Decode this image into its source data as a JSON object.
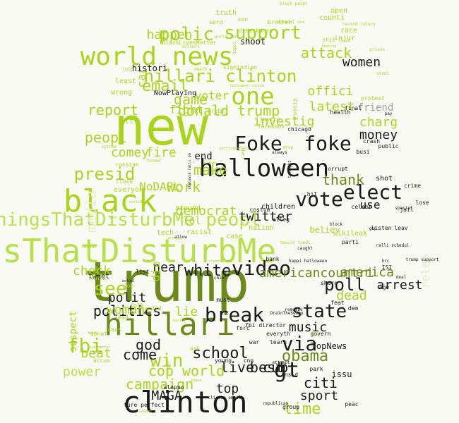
{
  "palette": {
    "background": "#fafaf5",
    "light": "#b8e04a",
    "lime": "#a8d41e",
    "green": "#8bb51e",
    "olive": "#6b8a1a",
    "dark": "#1a1a1a",
    "grey": "#a0a0a0",
    "faint": "#e6ecc6"
  },
  "words": [
    {
      "text": "trump",
      "weight": 100,
      "tone": "olive"
    },
    {
      "text": "new",
      "weight": 96,
      "tone": "lime"
    },
    {
      "text": "ThingsThatDisturbMe",
      "weight": 78,
      "tone": "light"
    },
    {
      "text": "black",
      "weight": 70,
      "tone": "lime"
    },
    {
      "text": "clinton",
      "weight": 68,
      "tone": "dark"
    },
    {
      "text": "hillari",
      "weight": 66,
      "tone": "olive"
    },
    {
      "text": "world news",
      "weight": 58,
      "tone": "lime"
    },
    {
      "text": "halloween",
      "weight": 56,
      "tone": "dark"
    },
    {
      "text": "one",
      "weight": 54,
      "tone": "lime"
    },
    {
      "text": "ThingsThatDisturbMe peopl",
      "weight": 50,
      "tone": "light"
    },
    {
      "text": "Foke",
      "weight": 48,
      "tone": "dark"
    },
    {
      "text": "foke",
      "weight": 48,
      "tone": "dark"
    },
    {
      "text": "video",
      "weight": 46,
      "tone": "dark"
    },
    {
      "text": "vote",
      "weight": 44,
      "tone": "dark"
    },
    {
      "text": "elect",
      "weight": 44,
      "tone": "dark"
    },
    {
      "text": "break",
      "weight": 42,
      "tone": "dark"
    },
    {
      "text": "hillari clinton",
      "weight": 40,
      "tone": "lime"
    },
    {
      "text": "fbi",
      "weight": 40,
      "tone": "lime"
    },
    {
      "text": "state",
      "weight": 40,
      "tone": "dark"
    },
    {
      "text": "polic",
      "weight": 38,
      "tone": "lime"
    },
    {
      "text": "support",
      "weight": 38,
      "tone": "lime"
    },
    {
      "text": "email",
      "weight": 36,
      "tone": "lime"
    },
    {
      "text": "via",
      "weight": 36,
      "tone": "dark"
    },
    {
      "text": "gt",
      "weight": 36,
      "tone": "dark"
    },
    {
      "text": "presid",
      "weight": 35,
      "tone": "lime"
    },
    {
      "text": "see",
      "weight": 35,
      "tone": "lime"
    },
    {
      "text": "win",
      "weight": 35,
      "tone": "lime"
    },
    {
      "text": "poll",
      "weight": 34,
      "tone": "dark"
    },
    {
      "text": "time",
      "weight": 34,
      "tone": "lime"
    },
    {
      "text": "obama",
      "weight": 33,
      "tone": "olive"
    },
    {
      "text": "school",
      "weight": 32,
      "tone": "dark"
    },
    {
      "text": "white",
      "weight": 32,
      "tone": "dark"
    },
    {
      "text": "attack",
      "weight": 32,
      "tone": "lime"
    },
    {
      "text": "game",
      "weight": 31,
      "tone": "lime"
    },
    {
      "text": "report",
      "weight": 31,
      "tone": "lime"
    },
    {
      "text": "peopl",
      "weight": 31,
      "tone": "lime"
    },
    {
      "text": "make",
      "weight": 31,
      "tone": "lime"
    },
    {
      "text": "work",
      "weight": 31,
      "tone": "lime"
    },
    {
      "text": "donald trump",
      "weight": 30,
      "tone": "lime"
    },
    {
      "text": "offici",
      "weight": 30,
      "tone": "lime"
    },
    {
      "text": "investig",
      "weight": 30,
      "tone": "lime"
    },
    {
      "text": "america",
      "weight": 29,
      "tone": "olive"
    },
    {
      "text": "politics",
      "weight": 29,
      "tone": "dark"
    },
    {
      "text": "god",
      "weight": 29,
      "tone": "dark"
    },
    {
      "text": "check",
      "weight": 29,
      "tone": "lime"
    },
    {
      "text": "dead",
      "weight": 29,
      "tone": "lime"
    },
    {
      "text": "cop world",
      "weight": 29,
      "tone": "lime"
    },
    {
      "text": "live cub",
      "weight": 29,
      "tone": "dark"
    },
    {
      "text": "women",
      "weight": 29,
      "tone": "dark"
    },
    {
      "text": "latest",
      "weight": 28,
      "tone": "lime"
    },
    {
      "text": "thank",
      "weight": 28,
      "tone": "olive"
    },
    {
      "text": "come",
      "weight": 28,
      "tone": "dark"
    },
    {
      "text": "media",
      "weight": 28,
      "tone": "faint"
    },
    {
      "text": "campaign",
      "weight": 28,
      "tone": "lime"
    },
    {
      "text": "citi",
      "weight": 28,
      "tone": "dark"
    },
    {
      "text": "best",
      "weight": 28,
      "tone": "dark"
    },
    {
      "text": "top",
      "weight": 28,
      "tone": "dark"
    },
    {
      "text": "americancountri",
      "weight": 27,
      "tone": "olive"
    },
    {
      "text": "music",
      "weight": 27,
      "tone": "dark"
    },
    {
      "text": "arrest",
      "weight": 27,
      "tone": "dark"
    },
    {
      "text": "MAGA",
      "weight": 27,
      "tone": "dark"
    },
    {
      "text": "sport",
      "weight": 27,
      "tone": "dark"
    },
    {
      "text": "twitter",
      "weight": 26,
      "tone": "dark"
    },
    {
      "text": "use",
      "weight": 26,
      "tone": "dark"
    },
    {
      "text": "polit",
      "weight": 25,
      "tone": "dark"
    },
    {
      "text": "woman",
      "weight": 26,
      "tone": "lime"
    },
    {
      "text": "charg",
      "weight": 26,
      "tone": "lime"
    },
    {
      "text": "money",
      "weight": 26,
      "tone": "dark"
    },
    {
      "text": "near",
      "weight": 26,
      "tone": "dark"
    },
    {
      "text": "lie",
      "weight": 26,
      "tone": "lime"
    },
    {
      "text": "democrat",
      "weight": 26,
      "tone": "lime"
    },
    {
      "text": "comey",
      "weight": 25,
      "tone": "lime"
    },
    {
      "text": "fire",
      "weight": 25,
      "tone": "lime"
    },
    {
      "text": "happen",
      "weight": 25,
      "tone": "lime"
    },
    {
      "text": "car",
      "weight": 25,
      "tone": "lime"
    },
    {
      "text": "NoDAPL",
      "weight": 24,
      "tone": "lime"
    },
    {
      "text": "fight",
      "weight": 24,
      "tone": "lime"
    },
    {
      "text": "voter",
      "weight": 24,
      "tone": "lime"
    },
    {
      "text": "die",
      "weight": 24,
      "tone": "lime"
    },
    {
      "text": "beat",
      "weight": 24,
      "tone": "lime"
    },
    {
      "text": "power",
      "weight": 24,
      "tone": "light"
    },
    {
      "text": "relea",
      "weight": 24,
      "tone": "faint"
    },
    {
      "text": "friend",
      "weight": 23,
      "tone": "grey"
    },
    {
      "text": "end",
      "weight": 22,
      "tone": "dark"
    },
    {
      "text": "lol",
      "weight": 22,
      "tone": "lime"
    },
    {
      "text": "suspect",
      "weight": 22,
      "tone": "lime"
    },
    {
      "text": "believ",
      "weight": 20,
      "tone": "lime"
    },
    {
      "text": "shoot",
      "weight": 20,
      "tone": "dark"
    },
    {
      "text": "TopNews",
      "weight": 20,
      "tone": "dark"
    },
    {
      "text": "shot",
      "weight": 20,
      "tone": "dark"
    },
    {
      "text": "children",
      "weight": 16,
      "tone": "dark"
    },
    {
      "text": "histori",
      "weight": 16,
      "tone": "dark"
    },
    {
      "text": "everyon",
      "weight": 16,
      "tone": "lime"
    },
    {
      "text": "wikileak",
      "weight": 16,
      "tone": "lime"
    },
    {
      "text": "tweet",
      "weight": 16,
      "tone": "dark"
    },
    {
      "text": "around",
      "weight": 16,
      "tone": "lime"
    },
    {
      "text": "racist",
      "weight": 16,
      "tone": "lime"
    },
    {
      "text": "tech",
      "weight": 16,
      "tone": "lime"
    },
    {
      "text": "case",
      "weight": 16,
      "tone": "lime"
    },
    {
      "text": "nation",
      "weight": 16,
      "tone": "lime"
    },
    {
      "text": "NowPlaying",
      "weight": 16,
      "tone": "dark"
    },
    {
      "text": "wrong",
      "weight": 16,
      "tone": "lime"
    },
    {
      "text": "least",
      "weight": 16,
      "tone": "lime"
    },
    {
      "text": "htt",
      "weight": 16,
      "tone": "lime"
    },
    {
      "text": "truth",
      "weight": 14,
      "tone": "lime"
    },
    {
      "text": "counti",
      "weight": 14,
      "tone": "lime"
    },
    {
      "text": "race",
      "weight": 14,
      "tone": "lime"
    },
    {
      "text": "injur",
      "weight": 14,
      "tone": "lime"
    },
    {
      "text": "open",
      "weight": 14,
      "tone": "lime"
    },
    {
      "text": "word",
      "weight": 12,
      "tone": "lime"
    },
    {
      "text": "son",
      "weight": 12,
      "tone": "lime"
    },
    {
      "text": "brother",
      "weight": 12,
      "tone": "lime"
    },
    {
      "text": "dresskansa",
      "weight": 12,
      "tone": "lime"
    },
    {
      "text": "shit",
      "weight": 12,
      "tone": "lime"
    },
    {
      "text": "BlackLivesMatter",
      "weight": 12,
      "tone": "lime"
    },
    {
      "text": "signindian",
      "weight": 12,
      "tone": "lime"
    },
    {
      "text": "russia",
      "weight": 12,
      "tone": "lime"
    },
    {
      "text": "facebook",
      "weight": 12,
      "tone": "lime"
    },
    {
      "text": "justic",
      "weight": 12,
      "tone": "lime"
    },
    {
      "text": "probe",
      "weight": 12,
      "tone": "lime"
    },
    {
      "text": "close",
      "weight": 12,
      "tone": "lime"
    },
    {
      "text": "protest",
      "weight": 12,
      "tone": "lime"
    },
    {
      "text": "final",
      "weight": 12,
      "tone": "dark"
    },
    {
      "text": "crash",
      "weight": 12,
      "tone": "dark"
    },
    {
      "text": "public",
      "weight": 12,
      "tone": "dark"
    },
    {
      "text": "busi",
      "weight": 12,
      "tone": "dark"
    },
    {
      "text": "corrupt",
      "weight": 12,
      "tone": "dark"
    },
    {
      "text": "crime",
      "weight": 12,
      "tone": "dark"
    },
    {
      "text": "lose",
      "weight": 12,
      "tone": "dark"
    },
    {
      "text": "jail",
      "weight": 12,
      "tone": "dark"
    },
    {
      "text": "celebr",
      "weight": 12,
      "tone": "dark"
    },
    {
      "text": "hit",
      "weight": 12,
      "tone": "dark"
    },
    {
      "text": "parti",
      "weight": 12,
      "tone": "dark"
    },
    {
      "text": "listen",
      "weight": 12,
      "tone": "dark"
    },
    {
      "text": "leav",
      "weight": 12,
      "tone": "dark"
    },
    {
      "text": "chicago",
      "weight": 12,
      "tone": "dark"
    },
    {
      "text": "share",
      "weight": 12,
      "tone": "dark"
    },
    {
      "text": "health",
      "weight": 12,
      "tone": "dark"
    },
    {
      "text": "ISI",
      "weight": 12,
      "tone": "dark"
    },
    {
      "text": "ago",
      "weight": 12,
      "tone": "dark"
    },
    {
      "text": "dem",
      "weight": 12,
      "tone": "dark"
    },
    {
      "text": "feat",
      "weight": 12,
      "tone": "dark"
    },
    {
      "text": "govern",
      "weight": 12,
      "tone": "dark"
    },
    {
      "text": "must",
      "weight": 12,
      "tone": "dark"
    },
    {
      "text": "bank",
      "weight": 12,
      "tone": "dark"
    },
    {
      "text": "chief",
      "weight": 12,
      "tone": "dark"
    },
    {
      "text": "fbi director",
      "weight": 10,
      "tone": "dark"
    },
    {
      "text": "war",
      "weight": 12,
      "tone": "dark"
    },
    {
      "text": "forc",
      "weight": 12,
      "tone": "dark"
    },
    {
      "text": "insid",
      "weight": 12,
      "tone": "dark"
    },
    {
      "text": "everyth",
      "weight": 12,
      "tone": "dark"
    },
    {
      "text": "learn",
      "weight": 12,
      "tone": "dark"
    },
    {
      "text": "park",
      "weight": 12,
      "tone": "dark"
    },
    {
      "text": "young",
      "weight": 12,
      "tone": "dark"
    },
    {
      "text": "cnn",
      "weight": 12,
      "tone": "dark"
    },
    {
      "text": "issu",
      "weight": 12,
      "tone": "dark"
    },
    {
      "text": "aleppo",
      "weight": 14,
      "tone": "dark"
    },
    {
      "text": "clinton email",
      "weight": 12,
      "tone": "dark"
    },
    {
      "text": "republican",
      "weight": 10,
      "tone": "dark"
    },
    {
      "text": "ture perfect",
      "weight": 10,
      "tone": "dark"
    },
    {
      "text": "group",
      "weight": 12,
      "tone": "dark"
    },
    {
      "text": "peac",
      "weight": 12,
      "tone": "dark"
    },
    {
      "text": "alleg",
      "weight": 12,
      "tone": "dark"
    },
    {
      "text": "caught",
      "weight": 12,
      "tone": "dark"
    },
    {
      "text": "costum",
      "weight": 10,
      "tone": "dark"
    },
    {
      "text": "always",
      "weight": 12,
      "tone": "dark"
    },
    {
      "text": "tonight",
      "weight": 10,
      "tone": "dark"
    },
    {
      "text": "block",
      "weight": 10,
      "tone": "dark"
    },
    {
      "text": "special",
      "weight": 10,
      "tone": "dark"
    },
    {
      "text": "gop",
      "weight": 10,
      "tone": "dark"
    },
    {
      "text": "trump support",
      "weight": 10,
      "tone": "dark"
    },
    {
      "text": "hrc",
      "weight": 10,
      "tone": "dark"
    },
    {
      "text": "ralli schedul",
      "weight": 10,
      "tone": "dark"
    },
    {
      "text": "happi halloween",
      "weight": 9,
      "tone": "dark"
    },
    {
      "text": "DrainTheSwamp",
      "weight": 10,
      "tone": "dark"
    },
    {
      "text": "attempt",
      "weight": 9,
      "tone": "dark"
    },
    {
      "text": "remembe",
      "weight": 9,
      "tone": "dark"
    },
    {
      "text": "deal",
      "weight": 10,
      "tone": "dark"
    },
    {
      "text": "pay",
      "weight": 10,
      "tone": "dark"
    },
    {
      "text": "list",
      "weight": 10,
      "tone": "dark"
    },
    {
      "text": "month",
      "weight": 12,
      "tone": "lime"
    },
    {
      "text": "job",
      "weight": 12,
      "tone": "lime"
    },
    {
      "text": "folk",
      "weight": 12,
      "tone": "lime"
    },
    {
      "text": "lead",
      "weight": 12,
      "tone": "lime"
    },
    {
      "text": "ask",
      "weight": 12,
      "tone": "lime"
    },
    {
      "text": "candid",
      "weight": 12,
      "tone": "lime"
    },
    {
      "text": "caus",
      "weight": 12,
      "tone": "lime"
    },
    {
      "text": "donat",
      "weight": 12,
      "tone": "lime"
    },
    {
      "text": "accus",
      "weight": 12,
      "tone": "lime"
    },
    {
      "text": "russian",
      "weight": 12,
      "tone": "lime"
    },
    {
      "text": "former",
      "weight": 12,
      "tone": "lime"
    },
    {
      "text": "reveal",
      "weight": 10,
      "tone": "lime"
    },
    {
      "text": "gun",
      "weight": 10,
      "tone": "lime"
    },
    {
      "text": "sex",
      "weight": 10,
      "tone": "lime"
    },
    {
      "text": "system",
      "weight": 10,
      "tone": "lime"
    },
    {
      "text": "judg",
      "weight": 10,
      "tone": "lime"
    },
    {
      "text": "death",
      "weight": 10,
      "tone": "lime"
    },
    {
      "text": "univers",
      "weight": 10,
      "tone": "lime"
    },
    {
      "text": "world ser",
      "weight": 9,
      "tone": "lime"
    },
    {
      "text": "black peopl",
      "weight": 9,
      "tone": "lime"
    },
    {
      "text": "schedul nov",
      "weight": 9,
      "tone": "lime"
    },
    {
      "text": "record return",
      "weight": 9,
      "tone": "lime"
    },
    {
      "text": "prison",
      "weight": 9,
      "tone": "lime"
    },
    {
      "text": "studi",
      "weight": 9,
      "tone": "lime"
    },
    {
      "text": "destroy",
      "weight": 9,
      "tone": "lime"
    },
    {
      "text": "three",
      "weight": 9,
      "tone": "lime"
    },
    {
      "text": "camp",
      "weight": 9,
      "tone": "lime"
    },
    {
      "text": "halloween costum",
      "weight": 8,
      "tone": "lime"
    },
    {
      "text": "mother",
      "weight": 8,
      "tone": "lime"
    },
    {
      "text": "statewid ralli pm",
      "weight": 9,
      "tone": "dark"
    },
    {
      "text": "participatewid",
      "weight": 8,
      "tone": "lime"
    },
    {
      "text": "claim blame",
      "weight": 8,
      "tone": "lime"
    },
    {
      "text": "terrorist",
      "weight": 8,
      "tone": "lime"
    },
    {
      "text": "drop",
      "weight": 8,
      "tone": "lime"
    },
    {
      "text": "outsid",
      "weight": 8,
      "tone": "lime"
    },
    {
      "text": "protect",
      "weight": 8,
      "tone": "lime"
    },
    {
      "text": "actual",
      "weight": 9,
      "tone": "dark"
    },
    {
      "text": "battl",
      "weight": 8,
      "tone": "lime"
    },
    {
      "text": "live matter",
      "weight": 8,
      "tone": "lime"
    },
    {
      "text": "number",
      "weight": 8,
      "tone": "lime"
    },
    {
      "text": "human",
      "weight": 8,
      "tone": "lime"
    },
    {
      "text": "leader",
      "weight": 8,
      "tone": "lime"
    },
    {
      "text": "ballot",
      "weight": 8,
      "tone": "lime"
    },
    {
      "text": "agre",
      "weight": 8,
      "tone": "lime"
    },
    {
      "text": "happi",
      "weight": 8,
      "tone": "lime"
    },
    {
      "text": "teacit Tomdi",
      "weight": 8,
      "tone": "lime"
    },
    {
      "text": "allow",
      "weight": 8,
      "tone": "dark"
    },
    {
      "text": "feel",
      "weight": 9,
      "tone": "lime"
    },
    {
      "text": "kick",
      "weight": 9,
      "tone": "lime"
    },
    {
      "text": "yet",
      "weight": 9,
      "tone": "lime"
    },
    {
      "text": "disturb",
      "weight": 8,
      "tone": "lime"
    }
  ]
}
